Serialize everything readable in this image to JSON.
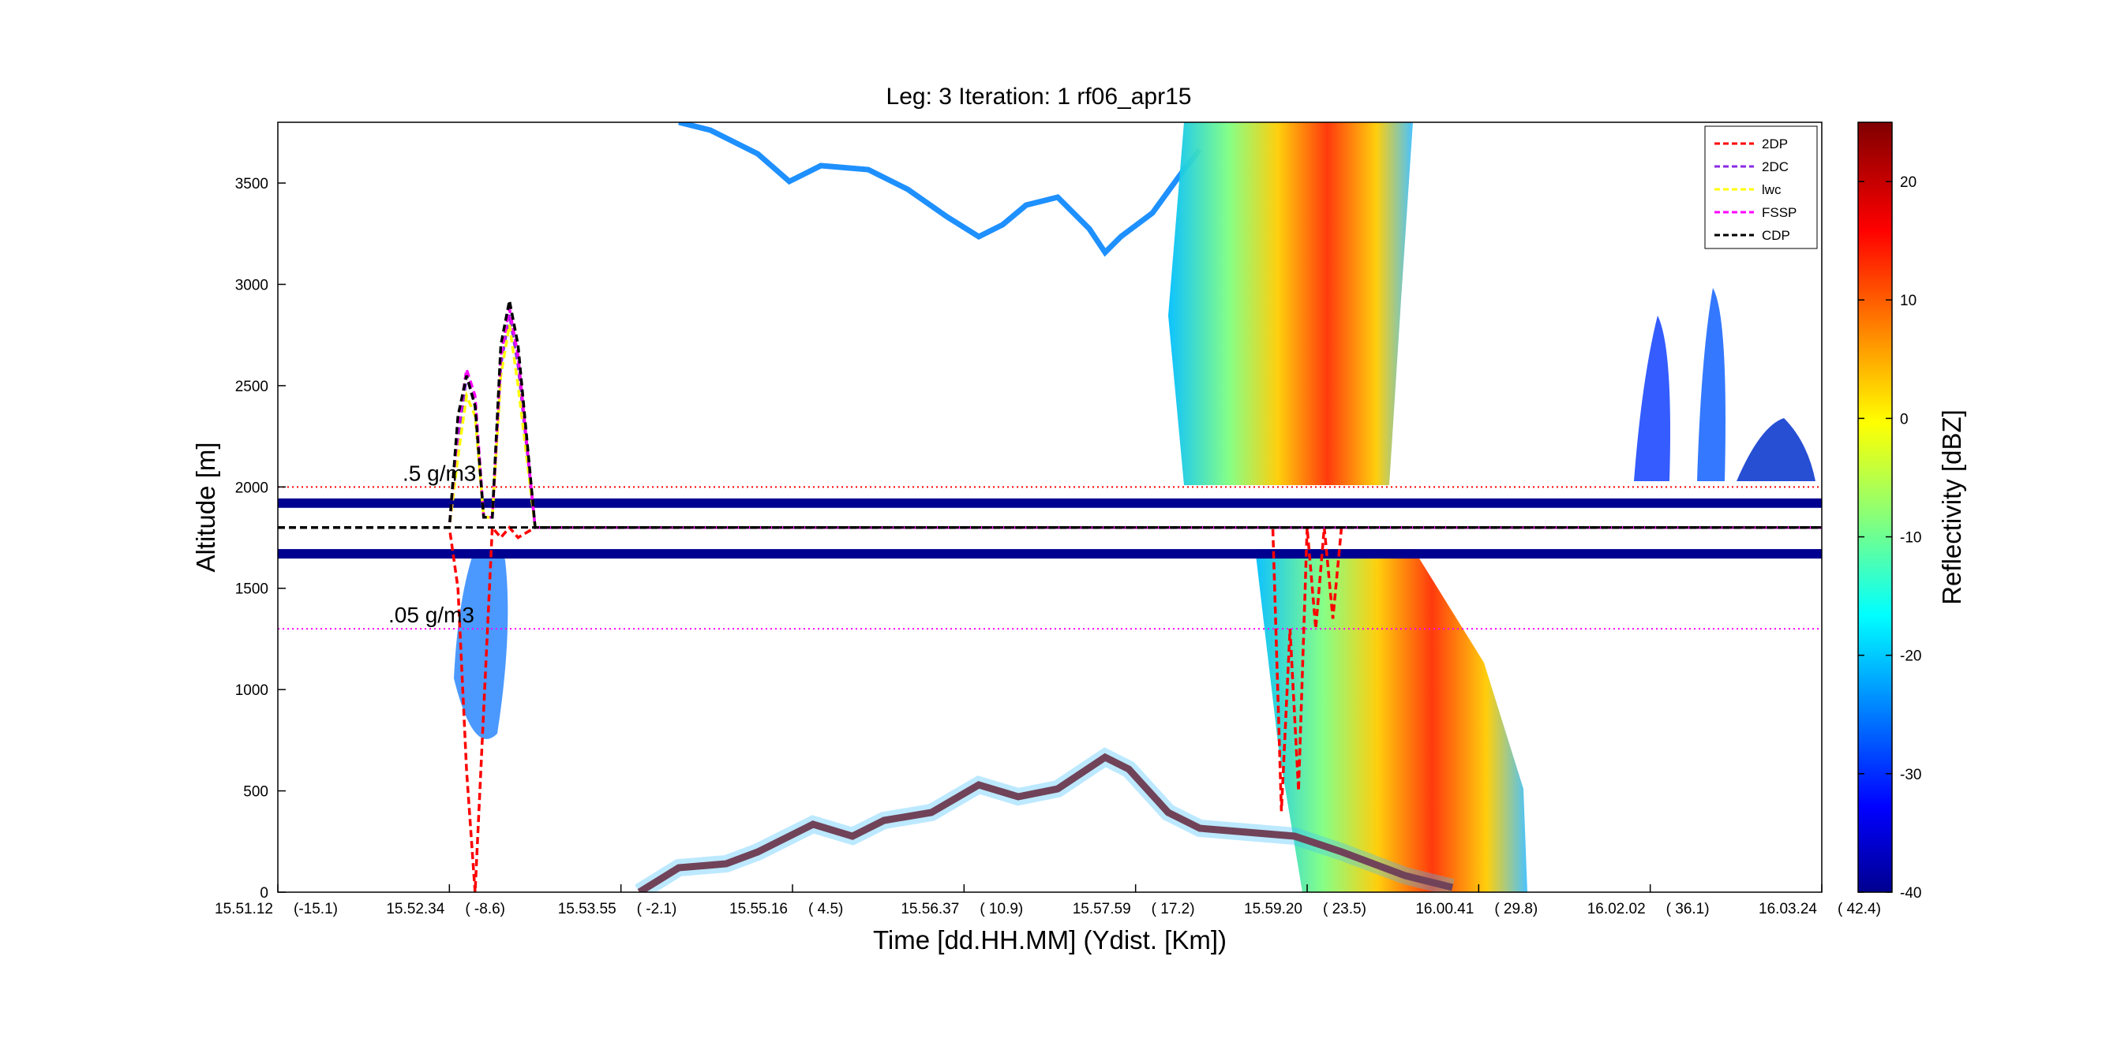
{
  "chart_data": {
    "type": "heatmap",
    "title": "Leg: 3  Iteration: 1  rf06_apr15",
    "xlabel": "Time [dd.HH.MM]    (Ydist. [Km])",
    "ylabel": "Altitude [m]",
    "colorbar_label": "Reflectivity [dBZ]",
    "ylim": [
      0,
      3800
    ],
    "yticks": [
      0,
      500,
      1000,
      1500,
      2000,
      2500,
      3000,
      3500
    ],
    "colorbar_lim": [
      -40,
      25
    ],
    "colorbar_ticks": [
      -40,
      -30,
      -20,
      -10,
      0,
      10,
      20
    ],
    "colormap": "jet",
    "x_tick_labels": [
      {
        "time": "15.51.12",
        "ydist": "(-15.1)"
      },
      {
        "time": "15.52.34",
        "ydist": "( -8.6)"
      },
      {
        "time": "15.53.55",
        "ydist": "( -2.1)"
      },
      {
        "time": "15.55.16",
        "ydist": "(  4.5)"
      },
      {
        "time": "15.56.37",
        "ydist": "( 10.9)"
      },
      {
        "time": "15.57.59",
        "ydist": "( 17.2)"
      },
      {
        "time": "15.59.20",
        "ydist": "( 23.5)"
      },
      {
        "time": "16.00.41",
        "ydist": "( 29.8)"
      },
      {
        "time": "16.02.02",
        "ydist": "( 36.1)"
      },
      {
        "time": "16.03.24",
        "ydist": "( 42.4)"
      }
    ],
    "reference_lines": [
      {
        "label": ".5 g/m3",
        "altitude": 2000,
        "color": "#ff0000"
      },
      {
        "label": ".05 g/m3",
        "altitude": 1300,
        "color": "#ff00ff"
      }
    ],
    "flight_altitude": 1800,
    "legend": {
      "placement": "top-right",
      "entries": [
        {
          "name": "2DP",
          "color": "#ff0000"
        },
        {
          "name": "2DC",
          "color": "#8a2be2"
        },
        {
          "name": "lwc",
          "color": "#ffff00"
        },
        {
          "name": "FSSP",
          "color": "#ff00ff"
        },
        {
          "name": "CDP",
          "color": "#000000"
        }
      ]
    },
    "series": [
      {
        "name": "2DP",
        "x": [
          0,
          1.0,
          1.05,
          1.1,
          1.15,
          1.2,
          1.25,
          1.3,
          1.35,
          1.4,
          1.5,
          1.8,
          5.5,
          5.8,
          5.85,
          5.9,
          5.95,
          6.0,
          6.05,
          6.1,
          6.15,
          6.2,
          6.3,
          9
        ],
        "y": [
          1800,
          1800,
          1500,
          600,
          0,
          900,
          1800,
          1750,
          1800,
          1750,
          1800,
          1800,
          1800,
          1800,
          400,
          1300,
          500,
          1800,
          1300,
          1800,
          1350,
          1800,
          1800,
          1800
        ]
      },
      {
        "name": "2DC",
        "x": [
          0,
          1.0,
          1.05,
          1.1,
          1.15,
          1.2,
          1.25,
          1.3,
          1.35,
          1.4,
          1.5,
          9
        ],
        "y": [
          1800,
          1800,
          2200,
          2550,
          2400,
          1850,
          1850,
          2600,
          2850,
          2600,
          1800,
          1800
        ]
      },
      {
        "name": "lwc",
        "x": [
          0,
          1.0,
          1.05,
          1.1,
          1.15,
          1.2,
          1.25,
          1.3,
          1.35,
          1.4,
          1.5,
          9
        ],
        "y": [
          1800,
          1800,
          2150,
          2450,
          2350,
          1850,
          1850,
          2550,
          2800,
          2500,
          1800,
          1800
        ]
      },
      {
        "name": "FSSP",
        "x": [
          0,
          1.0,
          1.05,
          1.1,
          1.15,
          1.2,
          1.25,
          1.3,
          1.35,
          1.4,
          1.5,
          9
        ],
        "y": [
          1800,
          1800,
          2300,
          2580,
          2450,
          1850,
          1850,
          2650,
          2880,
          2650,
          1800,
          1800
        ]
      },
      {
        "name": "CDP",
        "x": [
          0,
          1.0,
          1.05,
          1.1,
          1.15,
          1.2,
          1.25,
          1.3,
          1.35,
          1.4,
          1.5,
          9
        ],
        "y": [
          1800,
          1800,
          2350,
          2550,
          2400,
          1850,
          1850,
          2700,
          2920,
          2700,
          1800,
          1800
        ]
      }
    ]
  }
}
